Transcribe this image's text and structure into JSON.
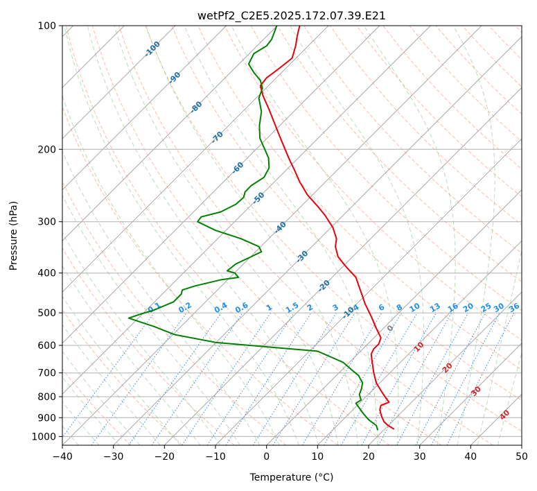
{
  "chart_data": {
    "type": "line",
    "title": "wetPf2_C2E5.2025.172.07.39.E21",
    "xlabel": "Temperature (°C)",
    "ylabel": "Pressure (hPa)",
    "xlim": [
      -40,
      50
    ],
    "ylim": [
      1050,
      100
    ],
    "y_scale": "log",
    "grid": true,
    "x_ticks": [
      "−40",
      "−30",
      "−20",
      "−10",
      "0",
      "10",
      "20",
      "30",
      "40",
      "50"
    ],
    "x_tick_values": [
      -40,
      -30,
      -20,
      -10,
      0,
      10,
      20,
      30,
      40,
      50
    ],
    "y_ticks": [
      "100",
      "200",
      "300",
      "400",
      "500",
      "600",
      "700",
      "800",
      "900",
      "1000"
    ],
    "y_tick_values": [
      100,
      200,
      300,
      400,
      500,
      600,
      700,
      800,
      900,
      1000
    ],
    "isotherm_labels": [
      "-100",
      "-90",
      "-80",
      "-70",
      "-60",
      "-50",
      "-40",
      "-30",
      "-20",
      "-10"
    ],
    "isotherm_label_values": [
      -100,
      -90,
      -80,
      -70,
      -60,
      -50,
      -40,
      -30,
      -20,
      -10
    ],
    "isotherm_label_pressures": [
      114,
      134,
      158,
      187,
      222,
      263,
      310,
      365,
      430,
      500
    ],
    "moist_adiabat_labels": [
      "0",
      "10",
      "20",
      "30",
      "40"
    ],
    "moist_adiabat_label_points": [
      [
        24.2,
        545
      ],
      [
        29.8,
        605
      ],
      [
        35.4,
        680
      ],
      [
        41.0,
        775
      ],
      [
        46.6,
        885
      ]
    ],
    "mixing_ratio_labels": [
      "0.1",
      "0.2",
      "0.4",
      "0.6",
      "1",
      "1.5",
      "2",
      "3",
      "4",
      "6",
      "8",
      "10",
      "13",
      "16",
      "20",
      "25",
      "30",
      "36"
    ],
    "mixing_ratio_label_x": [
      -22,
      -16,
      -9,
      -4.9,
      0.5,
      5,
      8.5,
      13.5,
      17.5,
      22.5,
      26,
      29,
      33,
      36.5,
      39.5,
      43,
      45.5,
      48.5
    ],
    "mixing_ratio_label_pressure": 485,
    "colors": {
      "temperature": "#e8000b",
      "dewpoint": "#008000",
      "isotherm_label": "#1f6fa8",
      "moist_label": "#d62728",
      "mixing_label": "#1f8fe8",
      "zero_label": "#7f7f7f"
    },
    "series": [
      {
        "color": "#e8000b",
        "points": [
          [
            25,
            960
          ],
          [
            23.8,
            940
          ],
          [
            23,
            920
          ],
          [
            22.5,
            890
          ],
          [
            22.2,
            860
          ],
          [
            22.4,
            840
          ],
          [
            24,
            825
          ],
          [
            23.5,
            810
          ],
          [
            22.6,
            780
          ],
          [
            21.5,
            740
          ],
          [
            21,
            700
          ],
          [
            20.7,
            660
          ],
          [
            20.5,
            630
          ],
          [
            21,
            612
          ],
          [
            22,
            595
          ],
          [
            22.4,
            575
          ],
          [
            21.5,
            545
          ],
          [
            20.5,
            510
          ],
          [
            19.3,
            475
          ],
          [
            18.5,
            445
          ],
          [
            17.5,
            410
          ],
          [
            15.5,
            385
          ],
          [
            14,
            365
          ],
          [
            13.5,
            345
          ],
          [
            13.7,
            330
          ],
          [
            13,
            310
          ],
          [
            11.5,
            290
          ],
          [
            10,
            275
          ],
          [
            8,
            258
          ],
          [
            6.5,
            240
          ],
          [
            5.5,
            225
          ],
          [
            4.5,
            212
          ],
          [
            3.5,
            198
          ],
          [
            2.5,
            185
          ],
          [
            1.5,
            172
          ],
          [
            0.5,
            160
          ],
          [
            -0.7,
            148
          ],
          [
            -1.2,
            140
          ],
          [
            0,
            134
          ],
          [
            2.5,
            127
          ],
          [
            5,
            120
          ],
          [
            5.7,
            112
          ],
          [
            6,
            106
          ],
          [
            6.5,
            100
          ]
        ]
      },
      {
        "color": "#008000",
        "points": [
          [
            21.8,
            965
          ],
          [
            21.5,
            940
          ],
          [
            20,
            910
          ],
          [
            19,
            880
          ],
          [
            17.5,
            830
          ],
          [
            18.5,
            815
          ],
          [
            18.2,
            790
          ],
          [
            18.6,
            765
          ],
          [
            18.8,
            740
          ],
          [
            18,
            710
          ],
          [
            16.8,
            690
          ],
          [
            15,
            660
          ],
          [
            10,
            620
          ],
          [
            0,
            605
          ],
          [
            -10,
            590
          ],
          [
            -18,
            565
          ],
          [
            -22,
            540
          ],
          [
            -27,
            515
          ],
          [
            -25,
            505
          ],
          [
            -22,
            492
          ],
          [
            -18.2,
            470
          ],
          [
            -16.7,
            450
          ],
          [
            -16.5,
            440
          ],
          [
            -14,
            430
          ],
          [
            -8.8,
            415
          ],
          [
            -5.5,
            410
          ],
          [
            -6.2,
            400
          ],
          [
            -7.7,
            395
          ],
          [
            -6,
            380
          ],
          [
            -3,
            365
          ],
          [
            -1,
            355
          ],
          [
            -1.5,
            345
          ],
          [
            -5,
            330
          ],
          [
            -10,
            315
          ],
          [
            -13.5,
            300
          ],
          [
            -12.8,
            292
          ],
          [
            -9,
            284
          ],
          [
            -6,
            272
          ],
          [
            -4.5,
            262
          ],
          [
            -4.2,
            254
          ],
          [
            -3,
            245
          ],
          [
            -0.5,
            234
          ],
          [
            0.5,
            222
          ],
          [
            0.4,
            210
          ],
          [
            -0.5,
            198
          ],
          [
            -1.3,
            188
          ],
          [
            -1.4,
            175
          ],
          [
            -1,
            162
          ],
          [
            -1.5,
            150
          ],
          [
            -0.8,
            142
          ],
          [
            -1.2,
            136
          ],
          [
            -2.5,
            130
          ],
          [
            -3.5,
            124
          ],
          [
            -2.5,
            117
          ],
          [
            0,
            112
          ],
          [
            1,
            108
          ],
          [
            1.5,
            104
          ],
          [
            2,
            100
          ]
        ]
      }
    ]
  }
}
